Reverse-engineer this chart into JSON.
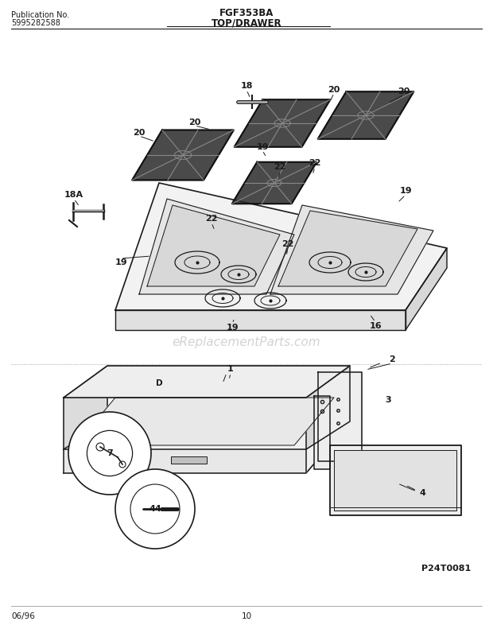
{
  "title_model": "FGF353BA",
  "title_section": "TOP/DRAWER",
  "pub_no_label": "Publication No.",
  "pub_no_value": "5995282588",
  "watermark": "eReplacementParts.com",
  "footer_left": "06/96",
  "footer_center": "10",
  "footer_right": "P24T0081",
  "bg_color": "#ffffff",
  "line_color": "#1a1a1a",
  "watermark_color": "#bbbbbb",
  "fig_width": 6.2,
  "fig_height": 7.91,
  "dpi": 100
}
